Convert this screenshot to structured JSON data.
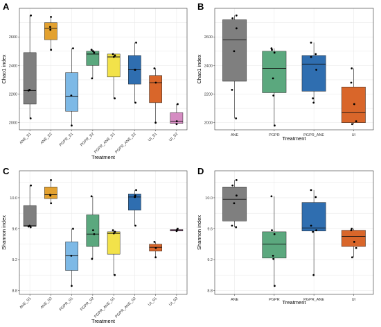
{
  "chart_data": [
    {
      "panel": "A",
      "type": "box",
      "xlabel": "Treatment",
      "ylabel": "Chao1 index",
      "ylim": [
        1950,
        2800
      ],
      "yticks": [
        2000,
        2200,
        2400,
        2600
      ],
      "x_label_rotation": -45,
      "categories": [
        "ANE_S1",
        "ANE_S2",
        "PGPR_S1",
        "PGPR_S2",
        "PGPR_ANE_S1",
        "PGPR_ANE_S2",
        "UI_S1",
        "UI_S2"
      ],
      "colors": [
        "#7f7f7f",
        "#e3a12f",
        "#7db9e6",
        "#5ba87e",
        "#f2e24a",
        "#2f6eb0",
        "#d9662a",
        "#d58cc2"
      ],
      "boxes": [
        {
          "min": 2030,
          "q1": 2130,
          "median": 2225,
          "q3": 2490,
          "max": 2750,
          "points": [
            2030,
            2225,
            2230,
            2750
          ]
        },
        {
          "min": 2510,
          "q1": 2580,
          "median": 2660,
          "q3": 2700,
          "max": 2740,
          "points": [
            2510,
            2650,
            2670,
            2740
          ]
        },
        {
          "min": 1980,
          "q1": 2080,
          "median": 2185,
          "q3": 2350,
          "max": 2520,
          "points": [
            1980,
            2190,
            2520
          ]
        },
        {
          "min": 2310,
          "q1": 2400,
          "median": 2480,
          "q3": 2500,
          "max": 2510,
          "points": [
            2310,
            2490,
            2500,
            2510
          ]
        },
        {
          "min": 2170,
          "q1": 2320,
          "median": 2460,
          "q3": 2480,
          "max": 2480,
          "points": [
            2170,
            2460,
            2470,
            2480
          ]
        },
        {
          "min": 2140,
          "q1": 2270,
          "median": 2370,
          "q3": 2470,
          "max": 2560,
          "points": [
            2140,
            2370,
            2370,
            2560
          ]
        },
        {
          "min": 2000,
          "q1": 2140,
          "median": 2280,
          "q3": 2330,
          "max": 2380,
          "points": [
            2000,
            2280,
            2380
          ]
        },
        {
          "min": 1990,
          "q1": 1995,
          "median": 2010,
          "q3": 2070,
          "max": 2130,
          "points": [
            1990,
            2010,
            2130
          ]
        }
      ]
    },
    {
      "panel": "B",
      "type": "box",
      "xlabel": "Treatment",
      "ylabel": "Chao1 index",
      "ylim": [
        1950,
        2800
      ],
      "yticks": [
        2000,
        2200,
        2400,
        2600
      ],
      "x_label_rotation": 0,
      "categories": [
        "ANE",
        "PGPR",
        "PGPR_ANE",
        "UI"
      ],
      "colors": [
        "#7f7f7f",
        "#5ba87e",
        "#2f6eb0",
        "#d9662a"
      ],
      "boxes": [
        {
          "min": 2030,
          "q1": 2290,
          "median": 2580,
          "q3": 2720,
          "max": 2750,
          "points": [
            2030,
            2230,
            2500,
            2660,
            2730,
            2750
          ]
        },
        {
          "min": 1980,
          "q1": 2210,
          "median": 2380,
          "q3": 2500,
          "max": 2520,
          "points": [
            1980,
            2190,
            2310,
            2490,
            2510,
            2520
          ]
        },
        {
          "min": 2140,
          "q1": 2220,
          "median": 2410,
          "q3": 2470,
          "max": 2560,
          "points": [
            2140,
            2170,
            2370,
            2460,
            2480,
            2560
          ]
        },
        {
          "min": 1990,
          "q1": 2000,
          "median": 2070,
          "q3": 2250,
          "max": 2380,
          "points": [
            1990,
            2010,
            2130,
            2280,
            2380
          ]
        }
      ]
    },
    {
      "panel": "C",
      "type": "box",
      "xlabel": "Treatment",
      "ylabel": "Shannon index",
      "ylim": [
        8.75,
        10.35
      ],
      "yticks": [
        8.8,
        9.2,
        9.6,
        10.0
      ],
      "ytick_labels": [
        "8.8",
        "9.2",
        "9.6",
        "10.0"
      ],
      "x_label_rotation": -45,
      "categories": [
        "ANE_S1",
        "ANE_S2",
        "PGPR_S1",
        "PGPR_S2",
        "PGPR_ANE_S1",
        "PGPR_ANE_S2",
        "UI_S1",
        "UI_S2"
      ],
      "colors": [
        "#7f7f7f",
        "#e3a12f",
        "#7db9e6",
        "#5ba87e",
        "#f2e24a",
        "#2f6eb0",
        "#d9662a",
        "#d58cc2"
      ],
      "boxes": [
        {
          "min": 9.62,
          "q1": 9.63,
          "median": 9.64,
          "q3": 9.9,
          "max": 10.16,
          "points": [
            9.62,
            9.63,
            9.64,
            10.16
          ]
        },
        {
          "min": 9.93,
          "q1": 9.99,
          "median": 10.04,
          "q3": 10.14,
          "max": 10.23,
          "points": [
            9.93,
            10.03,
            10.04,
            10.23
          ]
        },
        {
          "min": 8.86,
          "q1": 9.06,
          "median": 9.25,
          "q3": 9.43,
          "max": 9.6,
          "points": [
            8.86,
            9.25,
            9.6
          ]
        },
        {
          "min": 9.21,
          "q1": 9.37,
          "median": 9.53,
          "q3": 9.78,
          "max": 10.02,
          "points": [
            9.21,
            9.53,
            9.58,
            10.02
          ]
        },
        {
          "min": 9.0,
          "q1": 9.27,
          "median": 9.54,
          "q3": 9.56,
          "max": 9.58,
          "points": [
            9.0,
            9.54,
            9.56,
            9.58
          ]
        },
        {
          "min": 9.64,
          "q1": 9.84,
          "median": 10.01,
          "q3": 10.05,
          "max": 10.1,
          "points": [
            9.64,
            10.01,
            10.03,
            10.1
          ]
        },
        {
          "min": 9.23,
          "q1": 9.31,
          "median": 9.36,
          "q3": 9.4,
          "max": 9.43,
          "points": [
            9.23,
            9.35,
            9.43
          ]
        },
        {
          "min": 9.56,
          "q1": 9.57,
          "median": 9.58,
          "q3": 9.59,
          "max": 9.6,
          "points": [
            9.57,
            9.58,
            9.6
          ]
        }
      ]
    },
    {
      "panel": "D",
      "type": "box",
      "xlabel": "Treatment",
      "ylabel": "Shannon index",
      "ylim": [
        8.75,
        10.35
      ],
      "yticks": [
        8.8,
        9.2,
        9.6,
        10.0
      ],
      "ytick_labels": [
        "8.8",
        "9.2",
        "9.6",
        "10.0"
      ],
      "x_label_rotation": 0,
      "categories": [
        "ANE",
        "PGPR",
        "PGPR_ANE",
        "UI"
      ],
      "colors": [
        "#7f7f7f",
        "#5ba87e",
        "#2f6eb0",
        "#d9662a"
      ],
      "boxes": [
        {
          "min": 9.62,
          "q1": 9.7,
          "median": 9.98,
          "q3": 10.14,
          "max": 10.23,
          "points": [
            9.62,
            9.64,
            9.93,
            10.03,
            10.16,
            10.23
          ]
        },
        {
          "min": 8.86,
          "q1": 9.22,
          "median": 9.4,
          "q3": 9.56,
          "max": 10.02,
          "points": [
            8.86,
            9.21,
            9.25,
            9.53,
            9.58,
            10.02
          ]
        },
        {
          "min": 9.0,
          "q1": 9.57,
          "median": 9.61,
          "q3": 9.94,
          "max": 10.1,
          "points": [
            9.0,
            9.56,
            9.58,
            9.64,
            10.01,
            10.1
          ]
        },
        {
          "min": 9.23,
          "q1": 9.37,
          "median": 9.5,
          "q3": 9.58,
          "max": 9.6,
          "points": [
            9.23,
            9.35,
            9.43,
            9.58,
            9.6
          ]
        }
      ]
    }
  ]
}
